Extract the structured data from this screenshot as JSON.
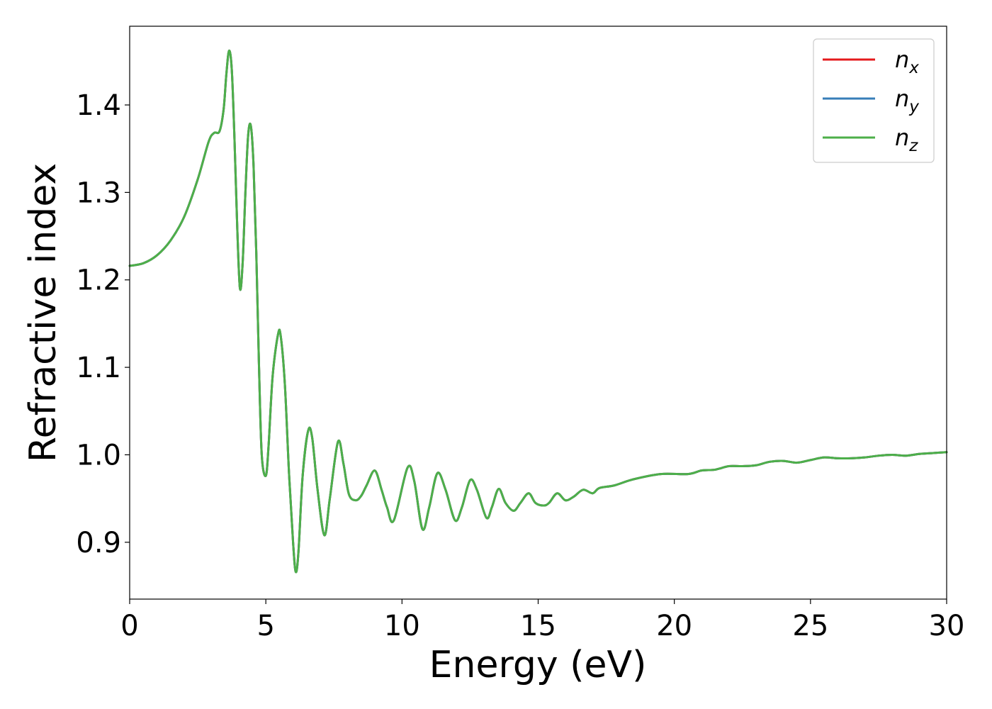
{
  "chart_data": {
    "type": "line",
    "xlabel": "Energy (eV)",
    "ylabel": "Refractive index",
    "xlim": [
      0,
      30
    ],
    "ylim": [
      0.835,
      1.49
    ],
    "xticks": [
      "0",
      "5",
      "10",
      "15",
      "20",
      "25",
      "30"
    ],
    "yticks": [
      "0.9",
      "1.0",
      "1.1",
      "1.2",
      "1.3",
      "1.4"
    ],
    "grid": false,
    "legend_position": "top-right",
    "x": [
      0,
      0.5,
      1.0,
      1.5,
      2.0,
      2.5,
      2.9,
      3.1,
      3.3,
      3.45,
      3.55,
      3.65,
      3.75,
      3.85,
      3.95,
      4.05,
      4.15,
      4.25,
      4.35,
      4.45,
      4.55,
      4.65,
      4.75,
      4.85,
      5.0,
      5.1,
      5.25,
      5.45,
      5.55,
      5.7,
      5.85,
      6.0,
      6.1,
      6.2,
      6.35,
      6.55,
      6.7,
      6.9,
      7.15,
      7.35,
      7.65,
      7.85,
      8.05,
      8.3,
      8.5,
      8.7,
      9.0,
      9.25,
      9.45,
      9.7,
      10.2,
      10.45,
      10.75,
      11.0,
      11.3,
      11.6,
      11.95,
      12.2,
      12.5,
      12.75,
      13.1,
      13.3,
      13.55,
      13.8,
      14.1,
      14.35,
      14.65,
      14.9,
      15.2,
      15.4,
      15.7,
      16.0,
      16.3,
      16.65,
      17.0,
      17.25,
      17.8,
      18.5,
      19.5,
      20.5,
      21.0,
      21.5,
      22.0,
      22.5,
      23.0,
      23.5,
      24.0,
      24.5,
      25.0,
      25.5,
      26.0,
      26.5,
      27.0,
      27.5,
      28.0,
      28.5,
      29.0,
      29.5,
      30.0
    ],
    "series": [
      {
        "name": "n",
        "subscript": "x",
        "color": "#e41a1c",
        "y": [
          1.216,
          1.219,
          1.228,
          1.245,
          1.272,
          1.315,
          1.358,
          1.368,
          1.37,
          1.395,
          1.435,
          1.462,
          1.44,
          1.36,
          1.26,
          1.19,
          1.22,
          1.3,
          1.365,
          1.376,
          1.33,
          1.23,
          1.1,
          1.0,
          0.976,
          1.01,
          1.09,
          1.138,
          1.135,
          1.08,
          0.98,
          0.9,
          0.866,
          0.89,
          0.975,
          1.027,
          1.02,
          0.96,
          0.908,
          0.95,
          1.015,
          0.99,
          0.955,
          0.948,
          0.953,
          0.965,
          0.982,
          0.96,
          0.94,
          0.925,
          0.985,
          0.97,
          0.915,
          0.94,
          0.979,
          0.96,
          0.925,
          0.94,
          0.971,
          0.96,
          0.928,
          0.94,
          0.961,
          0.945,
          0.936,
          0.945,
          0.956,
          0.945,
          0.942,
          0.945,
          0.956,
          0.948,
          0.952,
          0.96,
          0.956,
          0.962,
          0.965,
          0.972,
          0.978,
          0.978,
          0.982,
          0.983,
          0.987,
          0.987,
          0.988,
          0.992,
          0.993,
          0.991,
          0.994,
          0.997,
          0.996,
          0.996,
          0.997,
          0.999,
          1.0,
          0.999,
          1.001,
          1.002,
          1.003
        ]
      },
      {
        "name": "n",
        "subscript": "y",
        "color": "#377eb8",
        "y": [
          1.216,
          1.219,
          1.228,
          1.245,
          1.272,
          1.315,
          1.358,
          1.368,
          1.37,
          1.395,
          1.435,
          1.462,
          1.44,
          1.36,
          1.26,
          1.19,
          1.22,
          1.3,
          1.365,
          1.376,
          1.33,
          1.23,
          1.1,
          1.0,
          0.976,
          1.01,
          1.09,
          1.138,
          1.135,
          1.08,
          0.98,
          0.9,
          0.866,
          0.89,
          0.975,
          1.027,
          1.02,
          0.96,
          0.908,
          0.95,
          1.015,
          0.99,
          0.955,
          0.948,
          0.953,
          0.965,
          0.982,
          0.96,
          0.94,
          0.925,
          0.985,
          0.97,
          0.915,
          0.94,
          0.979,
          0.96,
          0.925,
          0.94,
          0.971,
          0.96,
          0.928,
          0.94,
          0.961,
          0.945,
          0.936,
          0.945,
          0.956,
          0.945,
          0.942,
          0.945,
          0.956,
          0.948,
          0.952,
          0.96,
          0.956,
          0.962,
          0.965,
          0.972,
          0.978,
          0.978,
          0.982,
          0.983,
          0.987,
          0.987,
          0.988,
          0.992,
          0.993,
          0.991,
          0.994,
          0.997,
          0.996,
          0.996,
          0.997,
          0.999,
          1.0,
          0.999,
          1.001,
          1.002,
          1.003
        ]
      },
      {
        "name": "n",
        "subscript": "z",
        "color": "#4daf4a",
        "y": [
          1.216,
          1.219,
          1.228,
          1.245,
          1.272,
          1.315,
          1.358,
          1.368,
          1.37,
          1.395,
          1.435,
          1.462,
          1.44,
          1.36,
          1.26,
          1.19,
          1.22,
          1.3,
          1.365,
          1.376,
          1.33,
          1.23,
          1.1,
          1.0,
          0.976,
          1.01,
          1.09,
          1.138,
          1.135,
          1.08,
          0.98,
          0.9,
          0.866,
          0.89,
          0.975,
          1.027,
          1.02,
          0.96,
          0.908,
          0.95,
          1.015,
          0.99,
          0.955,
          0.948,
          0.953,
          0.965,
          0.982,
          0.96,
          0.94,
          0.925,
          0.985,
          0.97,
          0.915,
          0.94,
          0.979,
          0.96,
          0.925,
          0.94,
          0.971,
          0.96,
          0.928,
          0.94,
          0.961,
          0.945,
          0.936,
          0.945,
          0.956,
          0.945,
          0.942,
          0.945,
          0.956,
          0.948,
          0.952,
          0.96,
          0.956,
          0.962,
          0.965,
          0.972,
          0.978,
          0.978,
          0.982,
          0.983,
          0.987,
          0.987,
          0.988,
          0.992,
          0.993,
          0.991,
          0.994,
          0.997,
          0.996,
          0.996,
          0.997,
          0.999,
          1.0,
          0.999,
          1.001,
          1.002,
          1.003
        ]
      }
    ]
  }
}
